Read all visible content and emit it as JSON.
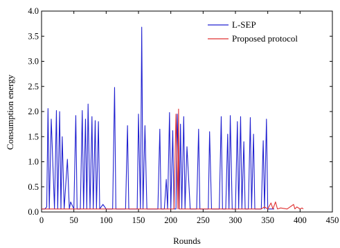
{
  "chart_data": {
    "type": "line",
    "title": "",
    "xlabel": "Rounds",
    "ylabel": "Consumption energy",
    "xlim": [
      0,
      450
    ],
    "ylim": [
      0,
      4.0
    ],
    "xticks": [
      "0",
      "50",
      "100",
      "150",
      "200",
      "250",
      "300",
      "350",
      "400",
      "450"
    ],
    "yticks": [
      "0.0",
      "0.5",
      "1.0",
      "1.5",
      "2.0",
      "2.5",
      "3.0",
      "3.5",
      "4.0"
    ],
    "legend_position": "top-right",
    "grid": false,
    "series": [
      {
        "name": "L-SEP",
        "color": "#2020d0",
        "x": [
          0,
          5,
          8,
          10,
          12,
          15,
          20,
          23,
          25,
          28,
          30,
          32,
          35,
          40,
          43,
          45,
          50,
          53,
          55,
          60,
          63,
          65,
          68,
          70,
          72,
          75,
          78,
          80,
          83,
          85,
          88,
          90,
          95,
          100,
          110,
          113,
          115,
          120,
          130,
          133,
          135,
          140,
          148,
          150,
          153,
          155,
          157,
          160,
          163,
          165,
          170,
          180,
          183,
          185,
          190,
          193,
          195,
          198,
          200,
          203,
          205,
          208,
          210,
          213,
          215,
          217,
          220,
          222,
          225,
          230,
          240,
          243,
          245,
          250,
          258,
          260,
          263,
          265,
          270,
          275,
          278,
          280,
          285,
          288,
          290,
          292,
          295,
          300,
          303,
          305,
          308,
          310,
          313,
          315,
          320,
          323,
          325,
          328,
          330,
          335,
          340,
          343,
          345,
          348,
          350,
          353,
          355,
          360
        ],
        "y": [
          0.06,
          0.06,
          0.1,
          2.06,
          0.06,
          1.85,
          0.06,
          2.02,
          0.06,
          2.0,
          0.06,
          1.5,
          0.06,
          1.05,
          0.06,
          0.2,
          0.06,
          1.92,
          0.06,
          0.06,
          2.02,
          0.06,
          1.85,
          0.06,
          2.15,
          0.06,
          1.9,
          0.06,
          1.82,
          0.06,
          1.8,
          0.06,
          0.15,
          0.06,
          0.06,
          2.48,
          0.06,
          0.06,
          0.06,
          1.72,
          0.06,
          0.06,
          0.06,
          1.95,
          0.06,
          3.68,
          0.06,
          1.72,
          0.06,
          0.06,
          0.06,
          0.06,
          1.65,
          0.06,
          0.06,
          0.65,
          0.06,
          1.98,
          0.06,
          1.62,
          0.06,
          0.06,
          1.95,
          0.06,
          1.75,
          0.06,
          1.9,
          0.06,
          1.3,
          0.06,
          0.06,
          1.65,
          0.06,
          0.06,
          0.06,
          1.6,
          0.06,
          0.06,
          0.06,
          0.06,
          1.9,
          0.06,
          0.06,
          1.55,
          0.06,
          1.92,
          0.06,
          0.06,
          1.8,
          0.06,
          1.9,
          0.06,
          1.4,
          0.06,
          0.06,
          1.88,
          0.06,
          1.55,
          0.06,
          0.06,
          0.06,
          1.42,
          0.06,
          1.85,
          0.06,
          0.06,
          0.06,
          0.06
        ]
      },
      {
        "name": "Proposed protocol",
        "color": "#e03030",
        "x": [
          0,
          50,
          100,
          150,
          200,
          205,
          208,
          211,
          212,
          213,
          216,
          220,
          250,
          300,
          340,
          345,
          350,
          355,
          358,
          362,
          365,
          370,
          380,
          390,
          392,
          395,
          400,
          403,
          405
        ],
        "y": [
          0.06,
          0.06,
          0.06,
          0.06,
          0.06,
          0.06,
          1.95,
          0.06,
          2.05,
          0.06,
          0.06,
          0.06,
          0.06,
          0.06,
          0.06,
          0.1,
          0.06,
          0.18,
          0.06,
          0.2,
          0.06,
          0.08,
          0.06,
          0.15,
          0.06,
          0.1,
          0.06,
          0.08,
          0.06
        ]
      }
    ]
  }
}
